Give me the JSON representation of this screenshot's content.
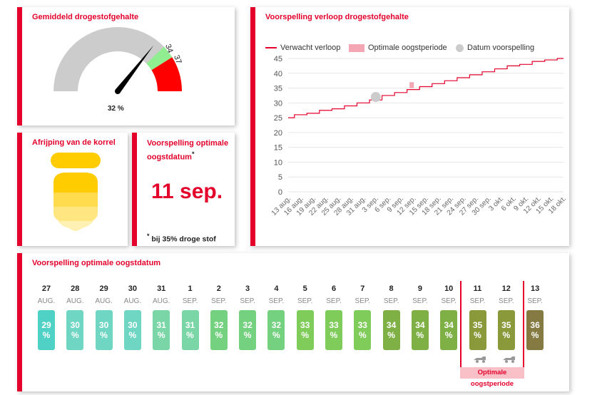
{
  "gauge": {
    "title": "Gemiddeld drogestofgehalte",
    "value_label": "32 %",
    "value": 32,
    "mark_low": "34",
    "mark_high": "37",
    "colors": {
      "track": "#cccccc",
      "optimal": "#90ee90",
      "over": "#ff0000",
      "needle": "#000000"
    }
  },
  "kernel": {
    "title": "Afrijping van de korrel",
    "colors": [
      "#ffcc00",
      "#ffdb4d",
      "#ffe680",
      "#fff1b3"
    ]
  },
  "harvest_date": {
    "title": "Voorspelling optimale oogstdatum",
    "title_marker": "*",
    "date": "11 sep.",
    "footnote_marker": "*",
    "footnote": "bij 35% droge stof"
  },
  "chart_data": {
    "type": "line",
    "title": "Voorspelling verloop drogestofgehalte",
    "legend": [
      "Verwacht verloop",
      "Optimale oogstperiode",
      "Datum voorspelling"
    ],
    "legend_position": "top",
    "x_tick_labels": [
      "13 aug.",
      "16 aug.",
      "19 aug.",
      "22 aug.",
      "25 aug.",
      "28 aug.",
      "31 aug.",
      "3 sep.",
      "6 sep.",
      "9 sep.",
      "12 sep.",
      "15 sep.",
      "18 sep.",
      "21 sep.",
      "24 sep.",
      "27 sep.",
      "30 sep.",
      "3 okt.",
      "6 okt.",
      "9 okt.",
      "12 okt.",
      "15 okt.",
      "18 okt."
    ],
    "y_ticks": [
      0,
      5,
      10,
      15,
      20,
      25,
      30,
      35,
      40,
      45
    ],
    "ylim": [
      0,
      45
    ],
    "series": [
      {
        "name": "Verwacht verloop",
        "color": "#e4002b",
        "x": [
          "13 aug.",
          "16 aug.",
          "19 aug.",
          "22 aug.",
          "25 aug.",
          "28 aug.",
          "31 aug.",
          "3 sep.",
          "6 sep.",
          "9 sep.",
          "12 sep.",
          "15 sep.",
          "18 sep.",
          "21 sep.",
          "24 sep.",
          "27 sep.",
          "30 sep.",
          "3 okt.",
          "6 okt.",
          "9 okt.",
          "12 okt.",
          "15 okt.",
          "18 okt."
        ],
        "values": [
          25,
          26,
          26.5,
          27.5,
          28,
          29,
          30,
          31,
          32.5,
          33.5,
          34.5,
          35.5,
          36.5,
          37.5,
          38.5,
          39.5,
          40.5,
          41.5,
          42.5,
          43,
          44,
          44.5,
          45
        ]
      }
    ],
    "optimal_period": {
      "x": "11 sep.",
      "y_range": [
        35,
        37
      ],
      "color": "#f4a6b4"
    },
    "forecast_date": {
      "x": "3 sep.",
      "y": 32,
      "color": "#cccccc"
    },
    "grid": true
  },
  "timeline": {
    "title": "Voorspelling optimale oogstdatum",
    "days": [
      {
        "day": "27",
        "month": "AUG.",
        "value": "29",
        "unit": "%",
        "color": "#4fd1c5"
      },
      {
        "day": "28",
        "month": "AUG.",
        "value": "30",
        "unit": "%",
        "color": "#6ed6c2"
      },
      {
        "day": "29",
        "month": "AUG.",
        "value": "30",
        "unit": "%",
        "color": "#6ed6c2"
      },
      {
        "day": "30",
        "month": "AUG.",
        "value": "30",
        "unit": "%",
        "color": "#6ed6c2"
      },
      {
        "day": "31",
        "month": "AUG.",
        "value": "31",
        "unit": "%",
        "color": "#7ad6a6"
      },
      {
        "day": "1",
        "month": "SEP.",
        "value": "31",
        "unit": "%",
        "color": "#7ad6a6"
      },
      {
        "day": "2",
        "month": "SEP.",
        "value": "32",
        "unit": "%",
        "color": "#74d17f"
      },
      {
        "day": "3",
        "month": "SEP.",
        "value": "32",
        "unit": "%",
        "color": "#74d17f"
      },
      {
        "day": "4",
        "month": "SEP.",
        "value": "32",
        "unit": "%",
        "color": "#74d17f"
      },
      {
        "day": "5",
        "month": "SEP.",
        "value": "33",
        "unit": "%",
        "color": "#7fcc5a"
      },
      {
        "day": "6",
        "month": "SEP.",
        "value": "33",
        "unit": "%",
        "color": "#7fcc5a"
      },
      {
        "day": "7",
        "month": "SEP.",
        "value": "33",
        "unit": "%",
        "color": "#7fcc5a"
      },
      {
        "day": "8",
        "month": "SEP.",
        "value": "34",
        "unit": "%",
        "color": "#7fb045"
      },
      {
        "day": "9",
        "month": "SEP.",
        "value": "34",
        "unit": "%",
        "color": "#7fb045"
      },
      {
        "day": "10",
        "month": "SEP.",
        "value": "34",
        "unit": "%",
        "color": "#7fb045"
      },
      {
        "day": "11",
        "month": "SEP.",
        "value": "35",
        "unit": "%",
        "color": "#8a9a3b"
      },
      {
        "day": "12",
        "month": "SEP.",
        "value": "35",
        "unit": "%",
        "color": "#8a9a3b"
      },
      {
        "day": "13",
        "month": "SEP.",
        "value": "36",
        "unit": "%",
        "color": "#857a42"
      }
    ],
    "optimal_label": "Optimale oogstperiode",
    "optimal_color": "#e4002b",
    "optimal_bg": "#f9c0c8"
  }
}
